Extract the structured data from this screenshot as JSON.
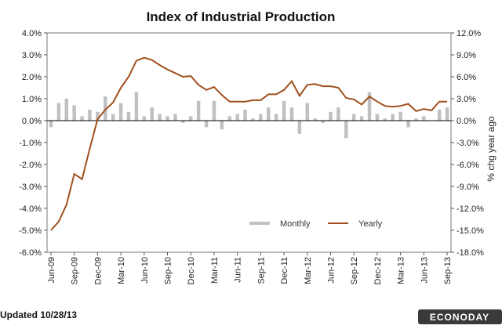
{
  "chart_data": {
    "type": "bar+line",
    "title": "Index of Industrial Production",
    "left_axis": {
      "ticks": [
        "4.0%",
        "3.0%",
        "2.0%",
        "1.0%",
        "0.0%",
        "-1.0%",
        "-2.0%",
        "-3.0%",
        "-4.0%",
        "-5.0%",
        "-6.0%"
      ],
      "range": [
        -6.0,
        4.0
      ]
    },
    "right_axis": {
      "label": "% chg year ago",
      "ticks": [
        "12.0%",
        "9.0%",
        "6.0%",
        "3.0%",
        "0.0%",
        "-3.0%",
        "-6.0%",
        "-9.0%",
        "-12.0%",
        "-15.0%",
        "-18.0%"
      ],
      "range": [
        -18.0,
        12.0
      ]
    },
    "x_tick_labels": [
      "Jun-09",
      "Sep-09",
      "Dec-09",
      "Mar-10",
      "Jun-10",
      "Sep-10",
      "Dec-10",
      "Mar-11",
      "Jun-11",
      "Sep-11",
      "Dec-11",
      "Mar-12",
      "Jun-12",
      "Sep-12",
      "Dec-12",
      "Mar-13",
      "Jun-13",
      "Sep-13"
    ],
    "months": [
      "Jun-09",
      "Jul-09",
      "Aug-09",
      "Sep-09",
      "Oct-09",
      "Nov-09",
      "Dec-09",
      "Jan-10",
      "Feb-10",
      "Mar-10",
      "Apr-10",
      "May-10",
      "Jun-10",
      "Jul-10",
      "Aug-10",
      "Sep-10",
      "Oct-10",
      "Nov-10",
      "Dec-10",
      "Jan-11",
      "Feb-11",
      "Mar-11",
      "Apr-11",
      "May-11",
      "Jun-11",
      "Jul-11",
      "Aug-11",
      "Sep-11",
      "Oct-11",
      "Nov-11",
      "Dec-11",
      "Jan-12",
      "Feb-12",
      "Mar-12",
      "Apr-12",
      "May-12",
      "Jun-12",
      "Jul-12",
      "Aug-12",
      "Sep-12",
      "Oct-12",
      "Nov-12",
      "Dec-12",
      "Jan-13",
      "Feb-13",
      "Mar-13",
      "Apr-13",
      "May-13",
      "Jun-13",
      "Jul-13",
      "Aug-13",
      "Sep-13"
    ],
    "series": [
      {
        "name": "Monthly",
        "axis": "left",
        "kind": "bar",
        "color": "#c0c0c0",
        "values": [
          -0.3,
          0.8,
          1.0,
          0.7,
          0.2,
          0.5,
          0.4,
          1.1,
          0.3,
          0.8,
          0.4,
          1.3,
          0.2,
          0.6,
          0.3,
          0.2,
          0.3,
          -0.1,
          0.2,
          0.9,
          -0.3,
          0.9,
          -0.4,
          0.2,
          0.3,
          0.5,
          0.1,
          0.3,
          0.6,
          0.3,
          0.9,
          0.6,
          -0.6,
          0.8,
          0.1,
          -0.1,
          0.4,
          0.6,
          -0.8,
          0.3,
          0.2,
          1.3,
          0.3,
          0.1,
          0.3,
          0.4,
          -0.3,
          0.1,
          0.2,
          0.0,
          0.5,
          0.6
        ]
      },
      {
        "name": "Yearly",
        "axis": "right",
        "kind": "line",
        "color": "#a0501e",
        "values": [
          -15.0,
          -13.8,
          -11.5,
          -7.3,
          -8.0,
          -3.8,
          0.2,
          1.5,
          2.5,
          4.5,
          6.0,
          8.2,
          8.6,
          8.3,
          7.6,
          7.0,
          6.5,
          6.0,
          6.1,
          4.9,
          4.2,
          4.6,
          3.5,
          2.6,
          2.6,
          2.6,
          2.8,
          2.8,
          3.6,
          3.6,
          4.2,
          5.4,
          3.4,
          4.9,
          5.0,
          4.7,
          4.7,
          4.5,
          3.1,
          2.9,
          2.2,
          3.3,
          2.6,
          2.0,
          1.9,
          2.0,
          2.3,
          1.3,
          1.6,
          1.4,
          2.6,
          2.6
        ]
      }
    ],
    "legend": {
      "placement": "bottom-right",
      "entries": [
        "Monthly",
        "Yearly"
      ]
    },
    "grid": false
  },
  "footer": {
    "updated": "Updated 10/28/13",
    "brand": "ECONODAY"
  }
}
